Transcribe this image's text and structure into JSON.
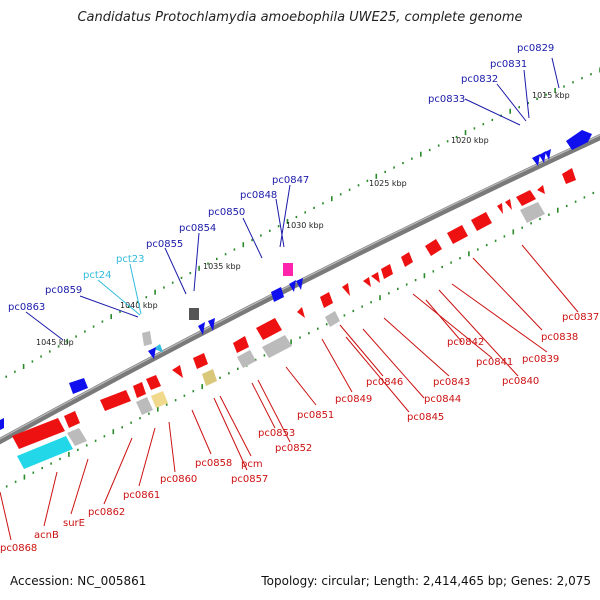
{
  "title": "Candidatus Protochlamydia amoebophila UWE25, complete genome",
  "footer": {
    "accession": "Accession: NC_005861",
    "topology": "Topology: circular; Length: 2,414,465 bp; Genes: 2,075"
  },
  "colors": {
    "backbone": "#7a7a7a",
    "forward_label": "#1a1aa8",
    "reverse_label": "#cc1111",
    "rna_label": "#33bbdd",
    "tick": "#2a8a2a",
    "forward_gene": "#1010ee",
    "reverse_gene": "#ee1111",
    "grey_feature": "#aaaaaa",
    "tan_feature": "#e8d38a",
    "cyan_feature": "#22d8e8",
    "magenta_feature": "#ff22aa"
  },
  "scale": {
    "kbp_labels": [
      "1015 kbp",
      "1020 kbp",
      "1025 kbp",
      "1030 kbp",
      "1035 kbp",
      "1040 kbp",
      "1045 kbp"
    ]
  },
  "forward_labels": [
    "pc0829",
    "pc0831",
    "pc0832",
    "pc0833",
    "pc0847",
    "pc0848",
    "pc0850",
    "pc0854",
    "pc0855",
    "pc0859",
    "pc0863"
  ],
  "rna_labels": [
    "pct23",
    "pct24"
  ],
  "reverse_labels": [
    "pc0837",
    "pc0838",
    "pc0839",
    "pc0840",
    "pc0841",
    "pc0842",
    "pc0843",
    "pc0844",
    "pc0845",
    "pc0846",
    "pc0849",
    "pc0851",
    "pc0852",
    "pc0853",
    "pc0857",
    "pcm",
    "pc0858",
    "pc0860",
    "pc0861",
    "pc0862",
    "surE",
    "acnB",
    "pc0868"
  ]
}
